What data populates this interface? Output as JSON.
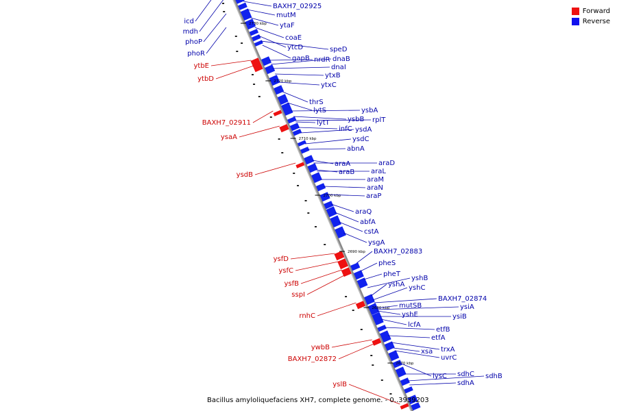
{
  "caption": "Bacillus amyloliquefaciens XH7, complete genome. - 0..3939203",
  "legend": [
    {
      "label": "Forward",
      "color": "#ee1111"
    },
    {
      "label": "Reverse",
      "color": "#1111ee"
    }
  ],
  "colors": {
    "forward_label": "#cc0000",
    "reverse_label": "#0000aa",
    "backbone": "#888888"
  },
  "ticks": [
    {
      "label": "2730 kbp",
      "pos": 2730000
    },
    {
      "label": "2720 kbp",
      "pos": 2720000
    },
    {
      "label": "2710 kbp",
      "pos": 2710000
    },
    {
      "label": "2700 kbp",
      "pos": 2700000
    },
    {
      "label": "2690 kbp",
      "pos": 2690000
    },
    {
      "label": "2680 kbp",
      "pos": 2680000
    },
    {
      "label": "2670 kbp",
      "pos": 2670000
    }
  ],
  "forward_genes": [
    {
      "name": "ytbE"
    },
    {
      "name": "ytbD"
    },
    {
      "name": "BAXH7_02911"
    },
    {
      "name": "ysaA"
    },
    {
      "name": "ysdB"
    },
    {
      "name": "ysfD"
    },
    {
      "name": "ysfC"
    },
    {
      "name": "ysfB"
    },
    {
      "name": "sspI"
    },
    {
      "name": "rnhC"
    },
    {
      "name": "ywbB"
    },
    {
      "name": "BAXH7_02872"
    },
    {
      "name": "yslB"
    }
  ],
  "reverse_genes_left": [
    {
      "name": "icd"
    },
    {
      "name": "mdh"
    },
    {
      "name": "phoP"
    },
    {
      "name": "phoR"
    }
  ],
  "reverse_genes": [
    {
      "name": "BAXH7_02925"
    },
    {
      "name": "mutM"
    },
    {
      "name": "ytaF"
    },
    {
      "name": "coaE"
    },
    {
      "name": "ytcD"
    },
    {
      "name": "speD"
    },
    {
      "name": "gapB"
    },
    {
      "name": "nrdR"
    },
    {
      "name": "dnaB"
    },
    {
      "name": "dnaI"
    },
    {
      "name": "ytxB"
    },
    {
      "name": "ytxC"
    },
    {
      "name": "thrS"
    },
    {
      "name": "lytS"
    },
    {
      "name": "ysbA"
    },
    {
      "name": "ysbB"
    },
    {
      "name": "rplT"
    },
    {
      "name": "lytT"
    },
    {
      "name": "infC"
    },
    {
      "name": "ysdA"
    },
    {
      "name": "ysdC"
    },
    {
      "name": "abnA"
    },
    {
      "name": "araA"
    },
    {
      "name": "araD"
    },
    {
      "name": "araB"
    },
    {
      "name": "araL"
    },
    {
      "name": "araM"
    },
    {
      "name": "araN"
    },
    {
      "name": "araP"
    },
    {
      "name": "araQ"
    },
    {
      "name": "abfA"
    },
    {
      "name": "cstA"
    },
    {
      "name": "ysgA"
    },
    {
      "name": "BAXH7_02883"
    },
    {
      "name": "pheS"
    },
    {
      "name": "pheT"
    },
    {
      "name": "yshB"
    },
    {
      "name": "yshA"
    },
    {
      "name": "yshC"
    },
    {
      "name": "BAXH7_02874"
    },
    {
      "name": "mutSB"
    },
    {
      "name": "ysiA"
    },
    {
      "name": "yshE"
    },
    {
      "name": "ysiB"
    },
    {
      "name": "lcfA"
    },
    {
      "name": "etfB"
    },
    {
      "name": "etfA"
    },
    {
      "name": "trxA"
    },
    {
      "name": "xsa"
    },
    {
      "name": "uvrC"
    },
    {
      "name": "lysC"
    },
    {
      "name": "sdhC"
    },
    {
      "name": "sdhB"
    },
    {
      "name": "sdhA"
    }
  ]
}
